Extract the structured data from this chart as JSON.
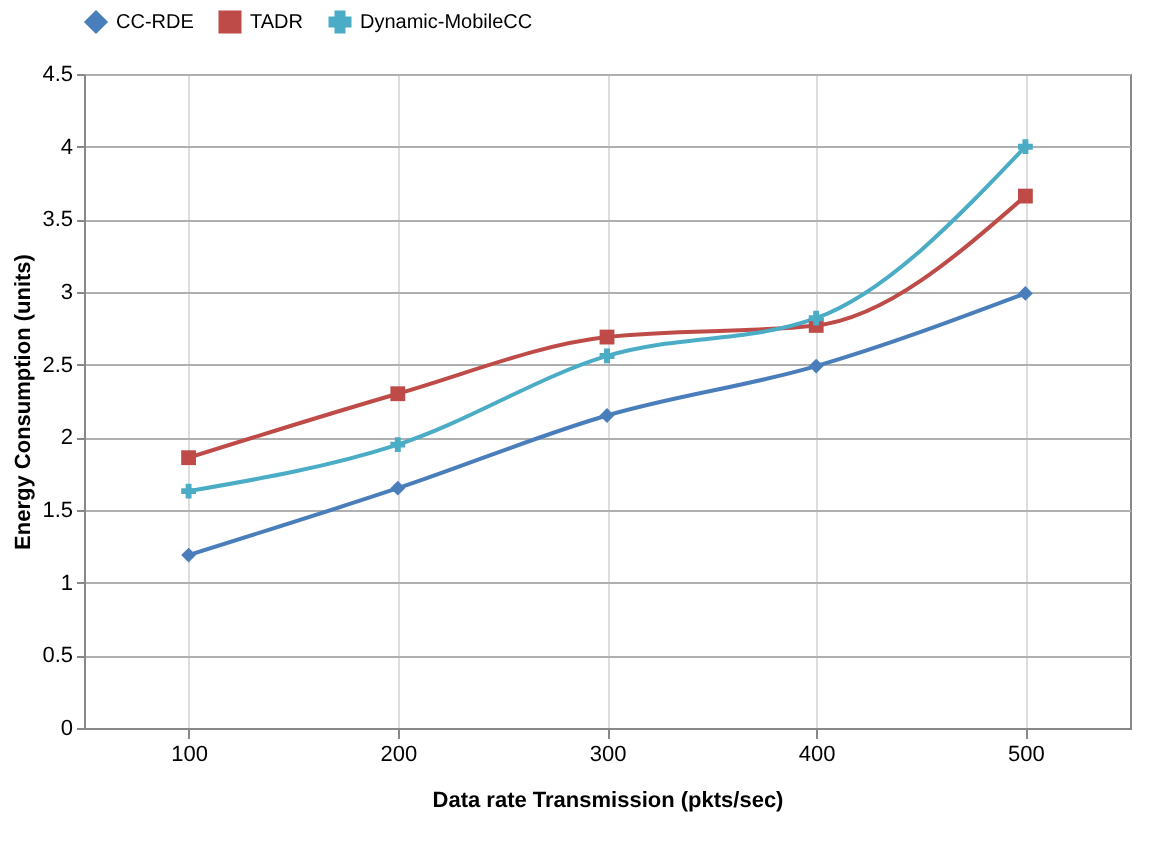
{
  "chart_data": {
    "type": "line",
    "xlabel": "Data rate Transmission (pkts/sec)",
    "ylabel": "Energy Consumption (units)",
    "categories": [
      "100",
      "200",
      "300",
      "400",
      "500"
    ],
    "series": [
      {
        "name": "CC-RDE",
        "color": "#4a7ebb",
        "marker": "diamond",
        "values": [
          1.19,
          1.65,
          2.15,
          2.49,
          2.99
        ]
      },
      {
        "name": "TADR",
        "color": "#be4b48",
        "marker": "square",
        "values": [
          1.86,
          2.3,
          2.69,
          2.77,
          3.66
        ]
      },
      {
        "name": "Dynamic-MobileCC",
        "color": "#4bacc6",
        "marker": "cross",
        "values": [
          1.63,
          1.95,
          2.56,
          2.82,
          4.0
        ]
      }
    ],
    "ylim": [
      0,
      4.5
    ],
    "yticks": [
      0,
      0.5,
      1,
      1.5,
      2,
      2.5,
      3,
      3.5,
      4,
      4.5
    ],
    "grid": true,
    "legend": "top",
    "line_style": "solid"
  }
}
